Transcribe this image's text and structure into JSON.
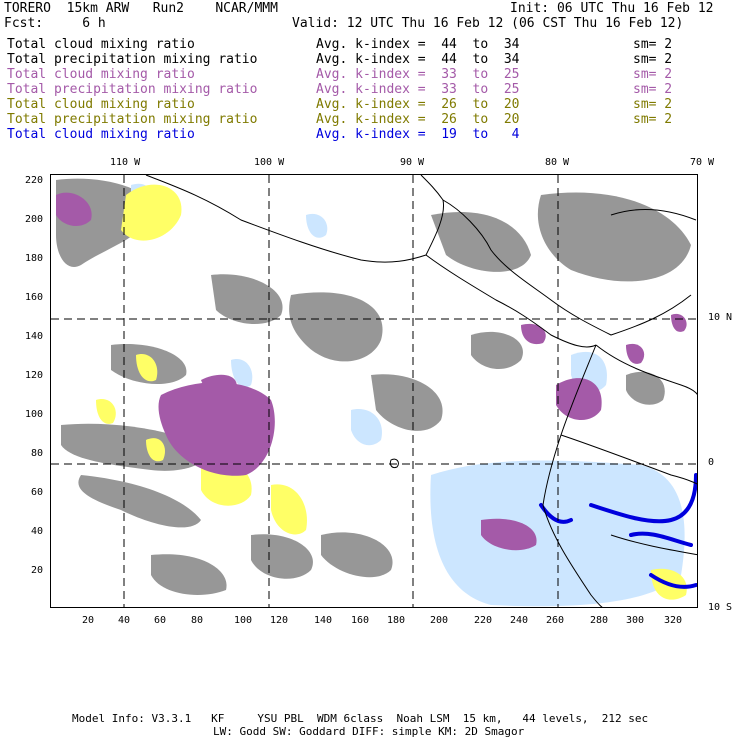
{
  "header": {
    "line1_left": "TORERO  15km ARW   Run2    NCAR/MMM",
    "line1_right": "Init: 06 UTC Thu 16 Feb 12",
    "line2_left": "Fcst:     6 h",
    "line2_right": "Valid: 12 UTC Thu 16 Feb 12 (06 CST Thu 16 Feb 12)"
  },
  "legend": [
    {
      "field": "Total cloud mixing ratio",
      "range": "Avg. k-index =  44  to  34",
      "sm": "sm= 2",
      "color": "#000000"
    },
    {
      "field": "Total precipitation mixing ratio",
      "range": "Avg. k-index =  44  to  34",
      "sm": "sm= 2",
      "color": "#000000"
    },
    {
      "field": "Total cloud mixing ratio",
      "range": "Avg. k-index =  33  to  25",
      "sm": "sm= 2",
      "color": "#a45aa8"
    },
    {
      "field": "Total precipitation mixing ratio",
      "range": "Avg. k-index =  33  to  25",
      "sm": "sm= 2",
      "color": "#a45aa8"
    },
    {
      "field": "Total cloud mixing ratio",
      "range": "Avg. k-index =  26  to  20",
      "sm": "sm= 2",
      "color": "#7f7a00"
    },
    {
      "field": "Total precipitation mixing ratio",
      "range": "Avg. k-index =  26  to  20",
      "sm": "sm= 2",
      "color": "#7f7a00"
    },
    {
      "field": "Total cloud mixing ratio",
      "range": "Avg. k-index =  19  to   4",
      "sm": "",
      "color": "#0000dd"
    }
  ],
  "map": {
    "lon_labels": [
      "110 W",
      "100 W",
      "90 W",
      "80 W",
      "70 W"
    ],
    "lat_labels": [
      "10 N",
      "0",
      "10 S"
    ],
    "y_ticks": [
      "220",
      "200",
      "180",
      "160",
      "140",
      "120",
      "100",
      "80",
      "60",
      "40",
      "20"
    ],
    "x_ticks": [
      "20",
      "40",
      "60",
      "80",
      "100",
      "120",
      "140",
      "160",
      "180",
      "200",
      "220",
      "240",
      "260",
      "280",
      "300",
      "320"
    ],
    "colors": {
      "gray": "#8c8c8c",
      "purple": "#a45aa8",
      "yellow": "#ffff66",
      "lightblue": "#cce6ff",
      "blue": "#0000dd"
    }
  },
  "footer": {
    "line1": "Model Info: V3.3.1   KF     YSU PBL  WDM 6class  Noah LSM  15 km,   44 levels,  212 sec",
    "line2": "LW: Godd SW: Goddard DIFF: simple KM: 2D Smagor"
  }
}
